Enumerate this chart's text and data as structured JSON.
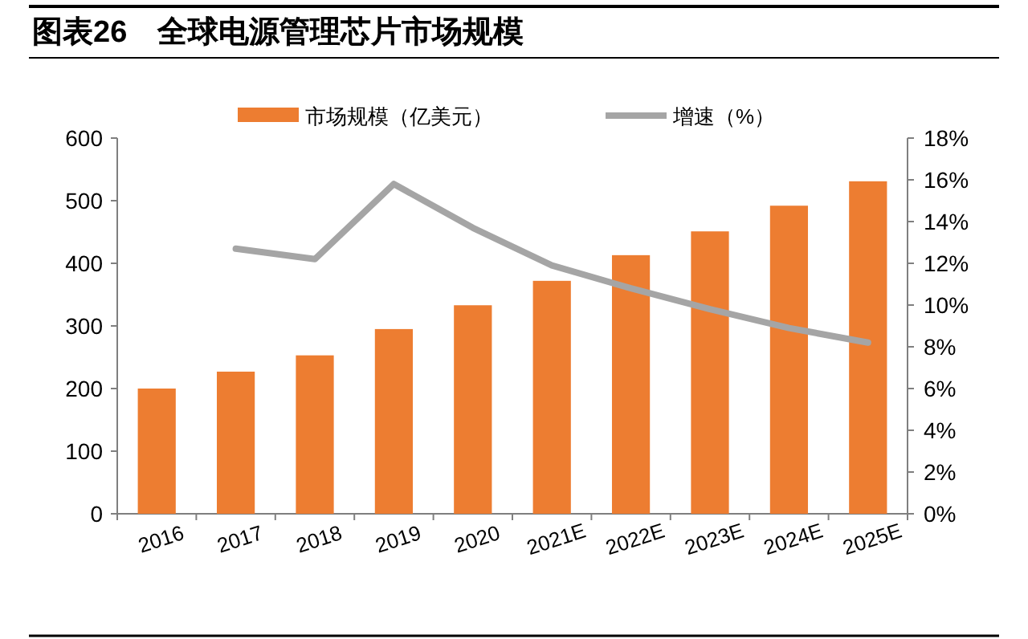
{
  "chart_data": {
    "type": "bar",
    "title": "图表26　全球电源管理芯片市场规模",
    "categories": [
      "2016",
      "2017",
      "2018",
      "2019",
      "2020",
      "2021E",
      "2022E",
      "2023E",
      "2024E",
      "2025E"
    ],
    "series": [
      {
        "name": "市场规模（亿美元）",
        "color": "#ed7d31",
        "values": [
          200,
          227,
          253,
          295,
          333,
          372,
          413,
          451,
          492,
          531
        ]
      },
      {
        "name": "增速（%）",
        "type": "line",
        "axis": "y2",
        "color": "#a5a5a5",
        "values": [
          null,
          12.7,
          12.2,
          15.8,
          13.7,
          11.9,
          10.8,
          9.8,
          8.9,
          8.2
        ]
      }
    ],
    "ylim": [
      0,
      600
    ],
    "yticks": [
      0,
      100,
      200,
      300,
      400,
      500,
      600
    ],
    "y2lim": [
      0,
      18
    ],
    "y2ticks": [
      {
        "value": 0,
        "label": "0%"
      },
      {
        "value": 2,
        "label": "2%"
      },
      {
        "value": 4,
        "label": "4%"
      },
      {
        "value": 6,
        "label": "6%"
      },
      {
        "value": 8,
        "label": "8%"
      },
      {
        "value": 10,
        "label": "10%"
      },
      {
        "value": 12,
        "label": "12%"
      },
      {
        "value": 14,
        "label": "14%"
      },
      {
        "value": 16,
        "label": "16%"
      },
      {
        "value": 18,
        "label": "18%"
      }
    ],
    "legend": "top",
    "grid": false,
    "marker": "none",
    "line_style": "solid"
  }
}
